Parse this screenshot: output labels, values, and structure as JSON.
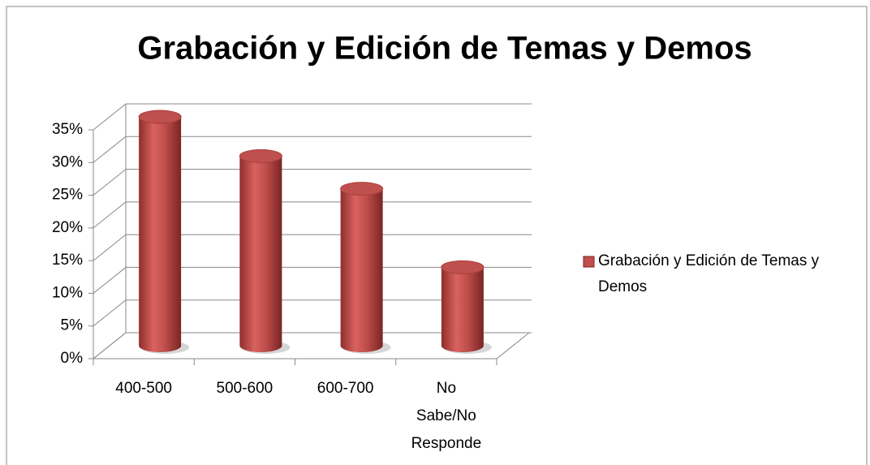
{
  "chart_data": {
    "type": "bar",
    "title": "Grabación y Edición de Temas y Demos",
    "categories": [
      "400-500",
      "500-600",
      "600-700",
      "No Sabe/No Responde"
    ],
    "series": [
      {
        "name": "Grabación y Edición de Temas y Demos",
        "color": "#c0504d",
        "values": [
          35,
          29,
          24,
          12
        ]
      }
    ],
    "ylim": [
      0,
      35
    ],
    "yticks": [
      {
        "value": 0,
        "label": "0%"
      },
      {
        "value": 5,
        "label": "5%"
      },
      {
        "value": 10,
        "label": "10%"
      },
      {
        "value": 15,
        "label": "15%"
      },
      {
        "value": 20,
        "label": "20%"
      },
      {
        "value": 25,
        "label": "25%"
      },
      {
        "value": 30,
        "label": "30%"
      },
      {
        "value": 35,
        "label": "35%"
      }
    ],
    "grid": true,
    "legend": "right"
  }
}
